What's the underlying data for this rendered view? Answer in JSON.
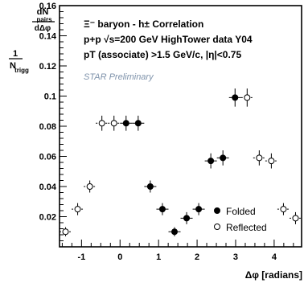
{
  "chart_data": {
    "type": "scatter",
    "title_lines": [
      "Ξ⁻ baryon - h± Correlation",
      "p+p √s=200 GeV HighTower data Y04",
      "pT (associate) >1.5 GeV/c, |η|<0.75"
    ],
    "preliminary_label": "STAR Preliminary",
    "xlabel": "Δφ [radians]",
    "ylabel": {
      "numerator_top": "dN",
      "numerator_sub": "pairs",
      "numerator_bottom": "dΔφ",
      "prefix_top": "1",
      "prefix_bottom": "N",
      "prefix_bottom_sub": "trigg"
    },
    "xlim": [
      -1.571,
      4.712
    ],
    "ylim": [
      0,
      0.16
    ],
    "x_ticks": [
      -1,
      0,
      1,
      2,
      3,
      4
    ],
    "y_ticks": [
      0.02,
      0.04,
      0.06,
      0.08,
      0.1,
      0.12,
      0.14,
      0.16
    ],
    "y_tick_labels": [
      "0.02",
      "0.04",
      "0.06",
      "0.08",
      "0.1",
      "0.12",
      "0.14",
      "0.16"
    ],
    "x_tick_labels": [
      "-1",
      "0",
      "1",
      "2",
      "3",
      "4"
    ],
    "legend": [
      {
        "name": "Folded",
        "marker": "filled-circle"
      },
      {
        "name": "Reflected",
        "marker": "open-circle"
      }
    ],
    "x_half_width": 0.157,
    "series": [
      {
        "name": "Folded",
        "marker": "filled",
        "points": [
          {
            "x": 0.157,
            "y": 0.082,
            "err": 0.005
          },
          {
            "x": 0.471,
            "y": 0.082,
            "err": 0.005
          },
          {
            "x": 0.785,
            "y": 0.04,
            "err": 0.004
          },
          {
            "x": 1.1,
            "y": 0.025,
            "err": 0.004
          },
          {
            "x": 1.414,
            "y": 0.01,
            "err": 0.003
          },
          {
            "x": 1.728,
            "y": 0.019,
            "err": 0.004
          },
          {
            "x": 2.042,
            "y": 0.025,
            "err": 0.004
          },
          {
            "x": 2.356,
            "y": 0.057,
            "err": 0.005
          },
          {
            "x": 2.67,
            "y": 0.059,
            "err": 0.005
          },
          {
            "x": 2.985,
            "y": 0.099,
            "err": 0.006
          }
        ]
      },
      {
        "name": "Reflected",
        "marker": "open",
        "points": [
          {
            "x": -1.414,
            "y": 0.01,
            "err": 0.003
          },
          {
            "x": -1.1,
            "y": 0.025,
            "err": 0.004
          },
          {
            "x": -0.785,
            "y": 0.04,
            "err": 0.004
          },
          {
            "x": -0.471,
            "y": 0.082,
            "err": 0.005
          },
          {
            "x": -0.157,
            "y": 0.082,
            "err": 0.005
          },
          {
            "x": 3.299,
            "y": 0.099,
            "err": 0.006
          },
          {
            "x": 3.613,
            "y": 0.059,
            "err": 0.005
          },
          {
            "x": 3.927,
            "y": 0.057,
            "err": 0.005
          },
          {
            "x": 4.241,
            "y": 0.025,
            "err": 0.004
          },
          {
            "x": 4.555,
            "y": 0.019,
            "err": 0.004
          }
        ]
      }
    ]
  }
}
